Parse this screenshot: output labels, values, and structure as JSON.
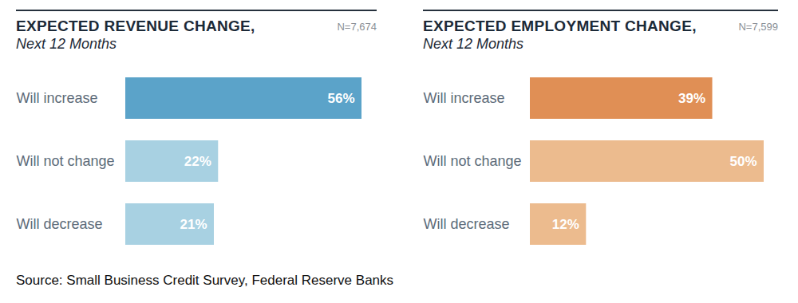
{
  "chart_data": [
    {
      "type": "bar",
      "orientation": "horizontal",
      "title": "EXPECTED REVENUE CHANGE,",
      "subtitle": "Next 12 Months",
      "annotation": "N=7,674",
      "categories": [
        "Will increase",
        "Will not change",
        "Will decrease"
      ],
      "values": [
        56,
        22,
        21
      ],
      "value_labels": [
        "56%",
        "22%",
        "21%"
      ],
      "colors": [
        "#5ba3c9",
        "#a8d1e2",
        "#a8d1e2"
      ],
      "xlim": [
        0,
        56
      ],
      "data_labels": true,
      "tick_labels": "y",
      "grid": false
    },
    {
      "type": "bar",
      "orientation": "horizontal",
      "title": "EXPECTED EMPLOYMENT CHANGE,",
      "subtitle": "Next 12 Months",
      "annotation": "N=7,599",
      "categories": [
        "Will increase",
        "Will not change",
        "Will decrease"
      ],
      "values": [
        39,
        50,
        12
      ],
      "value_labels": [
        "39%",
        "50%",
        "12%"
      ],
      "colors": [
        "#e08f55",
        "#ecbb8e",
        "#ecbb8e"
      ],
      "xlim": [
        0,
        50
      ],
      "data_labels": true,
      "tick_labels": "y",
      "grid": false
    }
  ],
  "caption": "Source: Small Business Credit Survey, Federal Reserve Banks"
}
